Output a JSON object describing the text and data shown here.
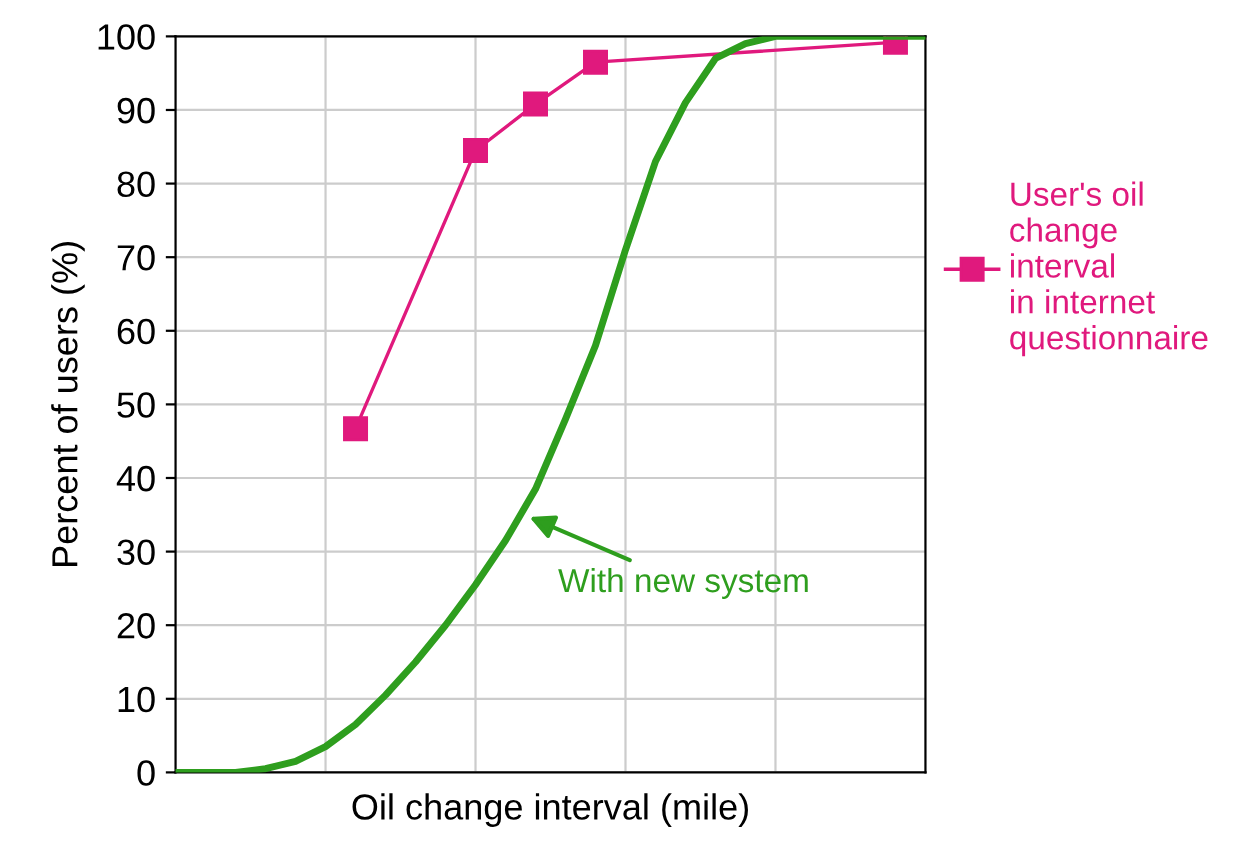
{
  "chart_data": {
    "type": "line",
    "xlabel": "Oil change interval (mile)",
    "ylabel": "Percent of users (%)",
    "categories": [
      null,
      null,
      null,
      null,
      null,
      null,
      null,
      null,
      null,
      null,
      null,
      null,
      null,
      null,
      null,
      null,
      null,
      null,
      null,
      null,
      null,
      null,
      null,
      null,
      null,
      null
    ],
    "ylim": [
      0,
      100
    ],
    "yticks": [
      0,
      10,
      20,
      30,
      40,
      50,
      60,
      70,
      80,
      90,
      100
    ],
    "grid": true,
    "legend": "right",
    "line_style": "solid",
    "series": [
      {
        "name": "User's oil\nchange\ninterval\nin internet\nquestionnaire",
        "color": "#e0197d",
        "marker": "square",
        "values": [
          null,
          null,
          null,
          null,
          null,
          null,
          46.7,
          null,
          null,
          null,
          84.5,
          null,
          90.8,
          null,
          96.5,
          null,
          null,
          null,
          null,
          null,
          null,
          null,
          null,
          null,
          99.2,
          null
        ]
      },
      {
        "color": "#2e9e1e",
        "marker": "none",
        "values": [
          0,
          0,
          0,
          0.5,
          1.5,
          3.5,
          6.5,
          10.5,
          15,
          20,
          25.5,
          31.5,
          38.5,
          48,
          58,
          71,
          83,
          91,
          97,
          99,
          100,
          100,
          100,
          100,
          100,
          100
        ]
      }
    ],
    "annotations": [
      "With new system"
    ]
  }
}
